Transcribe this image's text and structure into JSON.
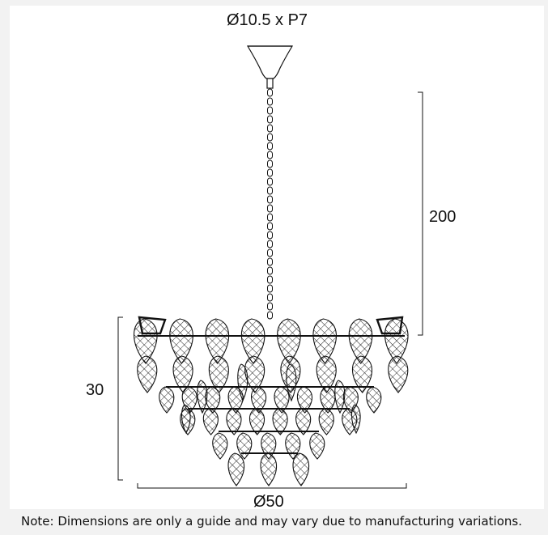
{
  "dimensions": {
    "canopy": "Ø10.5 x P7",
    "drop": "200",
    "height": "30",
    "diameter": "Ø50"
  },
  "note": "Note: Dimensions are only a guide and may vary due to manufacturing variations.",
  "colors": {
    "line": "#111111",
    "background": "#ffffff",
    "frame": "#f2f2f2"
  }
}
